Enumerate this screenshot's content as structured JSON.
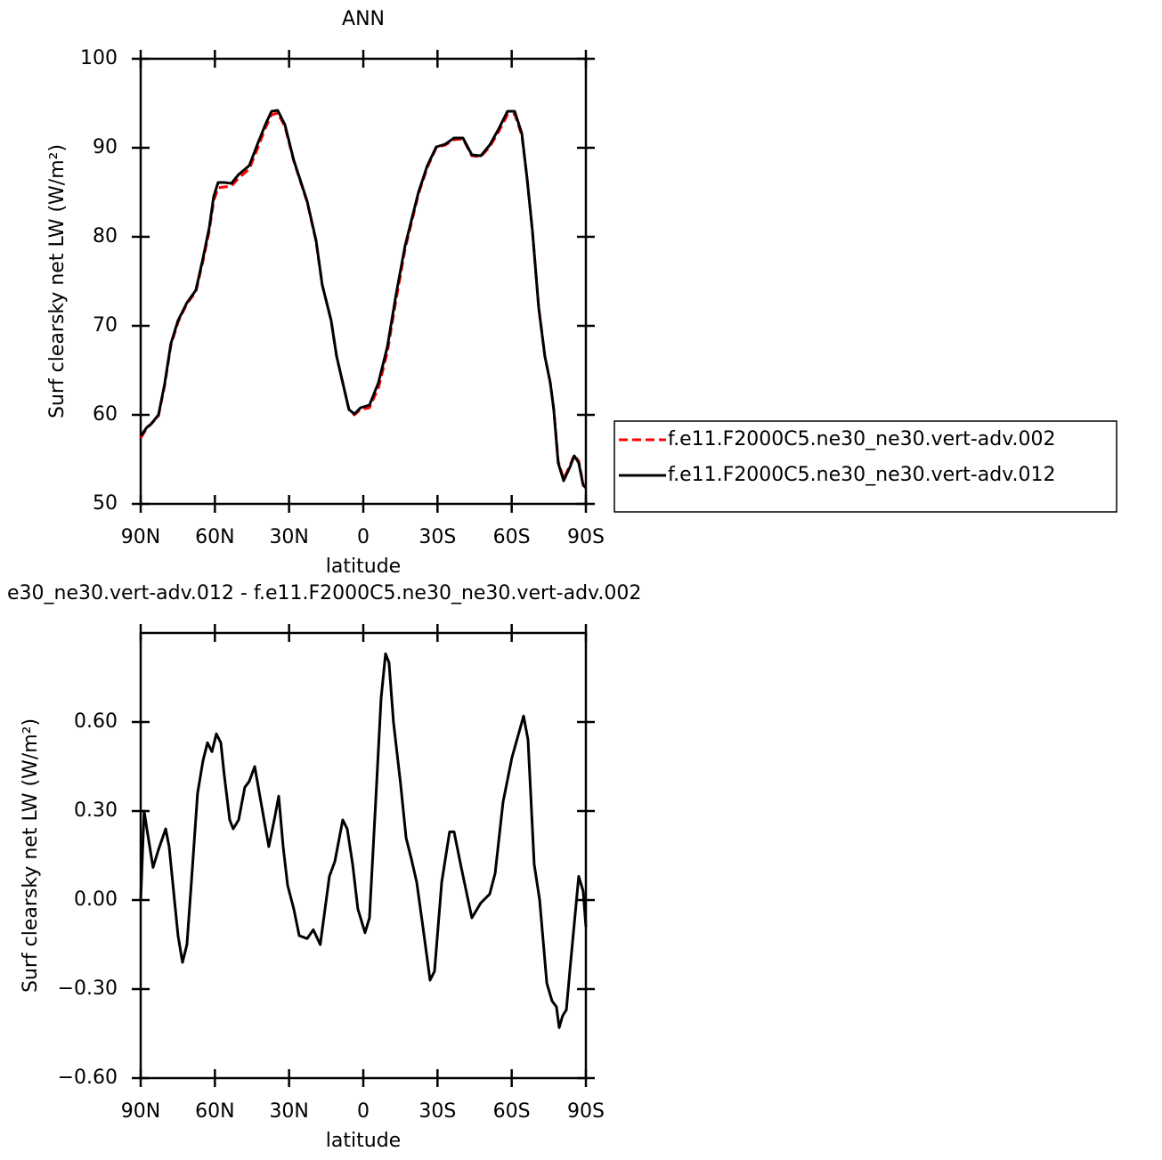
{
  "chart_data": [
    {
      "type": "line",
      "title": "ANN",
      "xlabel": "latitude",
      "ylabel": "Surf clearsky net LW (W/m²)",
      "x": [
        90,
        87.5,
        85.7,
        82.8,
        80.3,
        77.8,
        74.9,
        71.3,
        67.7,
        64.8,
        62.3,
        60.5,
        58.7,
        56.2,
        53.3,
        50.4,
        46.1,
        42.5,
        39.6,
        37.1,
        34.6,
        31.7,
        28.1,
        22.7,
        19.1,
        16.6,
        13,
        10.8,
        8.3,
        5.8,
        3.6,
        1.1,
        -2.5,
        -6.1,
        -9.7,
        -13.3,
        -16.9,
        -22.3,
        -25.9,
        -29.5,
        -33.1,
        -36.7,
        -40.3,
        -43.9,
        -47.5,
        -51.1,
        -54.7,
        -58.3,
        -61.2,
        -64.1,
        -66.2,
        -68.4,
        -70.9,
        -73.4,
        -75.6,
        -77,
        -78.8,
        -81,
        -83.5,
        -85.3,
        -87.1,
        -88.9,
        -90
      ],
      "series": [
        {
          "name": "f.e11.F2000C5.ne30_ne30.vert-adv.002",
          "color": "#ff0000",
          "line_style": "dashed",
          "values": [
            57.4,
            58.5,
            59,
            59.9,
            63.3,
            67.8,
            70.4,
            72.5,
            73.8,
            77.3,
            80.6,
            84,
            85.5,
            85.6,
            85.7,
            86.6,
            87.6,
            90.1,
            92.2,
            93.7,
            93.9,
            92.4,
            88.5,
            83.9,
            79.5,
            74.6,
            70.6,
            66.6,
            63.6,
            60.6,
            60,
            60.6,
            60.8,
            63,
            67,
            73,
            78.6,
            84.8,
            87.8,
            90,
            90.3,
            90.9,
            91,
            89.1,
            89,
            90.1,
            91.8,
            93.7,
            93.8,
            91.4,
            86.6,
            80.6,
            72.1,
            66.6,
            63.6,
            60.7,
            54.8,
            52.8,
            54.3,
            55.5,
            54.8,
            52.2,
            51.8
          ]
        },
        {
          "name": "f.e11.F2000C5.ne30_ne30.vert-adv.012",
          "color": "#000000",
          "line_style": "solid",
          "values": [
            57.6,
            58.6,
            59,
            60,
            63.5,
            68,
            70.6,
            72.6,
            74,
            77.6,
            81,
            84.5,
            86.1,
            86.1,
            86,
            87,
            88,
            90.6,
            92.6,
            94.1,
            94.2,
            92.6,
            88.6,
            84,
            79.6,
            74.6,
            70.6,
            66.6,
            63.6,
            60.6,
            60.1,
            60.8,
            61.1,
            63.6,
            67.6,
            73.6,
            79,
            85,
            88,
            90.1,
            90.4,
            91.1,
            91.1,
            89.2,
            89.1,
            90.3,
            92.1,
            94.1,
            94.1,
            91.6,
            86.6,
            80.6,
            72.1,
            66.6,
            63.6,
            60.6,
            54.6,
            52.6,
            54.1,
            55.4,
            54.6,
            52.1,
            51.8
          ]
        }
      ],
      "xlim": [
        90,
        -90
      ],
      "xticks": [
        {
          "value": 90,
          "label": "90N"
        },
        {
          "value": 60,
          "label": "60N"
        },
        {
          "value": 30,
          "label": "30N"
        },
        0,
        {
          "value": -30,
          "label": "30S"
        },
        {
          "value": -60,
          "label": "60S"
        },
        {
          "value": -90,
          "label": "90S"
        }
      ],
      "ylim": [
        50,
        100
      ],
      "yticks": [
        50,
        60,
        70,
        80,
        90,
        100
      ],
      "legend": "right"
    },
    {
      "type": "line",
      "title": "e30_ne30.vert-adv.012 - f.e11.F2000C5.ne30_ne30.vert-adv.002",
      "xlabel": "latitude",
      "ylabel": "Surf clearsky net LW (W/m²)",
      "x": [
        90,
        88.6,
        87.5,
        85,
        82.8,
        79.9,
        78.5,
        76.7,
        74.9,
        73.1,
        71.3,
        69.5,
        67,
        64.8,
        63,
        61.2,
        59.4,
        57.6,
        56.2,
        54,
        52.6,
        50.4,
        47.9,
        46.1,
        43.9,
        41.8,
        38.2,
        36,
        34.2,
        32.4,
        30.6,
        28.1,
        25.9,
        22.7,
        20.2,
        17.4,
        13.7,
        11.5,
        8.3,
        6.5,
        4.3,
        2.2,
        -0.7,
        -2.5,
        -5,
        -7.2,
        -9,
        -10.4,
        -12.2,
        -15.1,
        -17.3,
        -19.4,
        -21.6,
        -24.1,
        -27,
        -28.8,
        -31.7,
        -34.9,
        -36.7,
        -39.6,
        -43.9,
        -47.5,
        -51.1,
        -53.3,
        -56.5,
        -60.1,
        -64.8,
        -66.6,
        -69.1,
        -71.3,
        -74.2,
        -76.3,
        -78.1,
        -79.2,
        -80.6,
        -82.1,
        -83.5,
        -87.1,
        -88.9,
        -90
      ],
      "values": [
        0,
        0.3,
        0.24,
        0.11,
        0.17,
        0.24,
        0.18,
        0.03,
        -0.12,
        -0.21,
        -0.15,
        0.06,
        0.36,
        0.47,
        0.53,
        0.5,
        0.56,
        0.53,
        0.42,
        0.27,
        0.24,
        0.27,
        0.38,
        0.4,
        0.45,
        0.35,
        0.18,
        0.27,
        0.35,
        0.18,
        0.05,
        -0.03,
        -0.12,
        -0.13,
        -0.1,
        -0.15,
        0.08,
        0.13,
        0.27,
        0.24,
        0.12,
        -0.03,
        -0.11,
        -0.06,
        0.33,
        0.68,
        0.83,
        0.8,
        0.6,
        0.39,
        0.21,
        0.14,
        0.06,
        -0.09,
        -0.27,
        -0.24,
        0.06,
        0.23,
        0.23,
        0.11,
        -0.06,
        -0.01,
        0.02,
        0.09,
        0.33,
        0.48,
        0.62,
        0.54,
        0.12,
        0,
        -0.28,
        -0.34,
        -0.36,
        -0.43,
        -0.39,
        -0.37,
        -0.24,
        0.08,
        0.03,
        -0.09
      ],
      "color": "#000000",
      "line_style": "solid",
      "xlim": [
        90,
        -90
      ],
      "xticks": [
        {
          "value": 90,
          "label": "90N"
        },
        {
          "value": 60,
          "label": "60N"
        },
        {
          "value": 30,
          "label": "30N"
        },
        0,
        {
          "value": -30,
          "label": "30S"
        },
        {
          "value": -60,
          "label": "60S"
        },
        {
          "value": -90,
          "label": "90S"
        }
      ],
      "ylim": [
        -0.6,
        0.9
      ],
      "yticks": [
        {
          "value": -0.6,
          "label": "−0.60"
        },
        {
          "value": -0.3,
          "label": "−0.30"
        },
        {
          "value": 0,
          "label": "0.00"
        },
        {
          "value": 0.3,
          "label": "0.30"
        },
        {
          "value": 0.6,
          "label": "0.60"
        }
      ]
    }
  ]
}
